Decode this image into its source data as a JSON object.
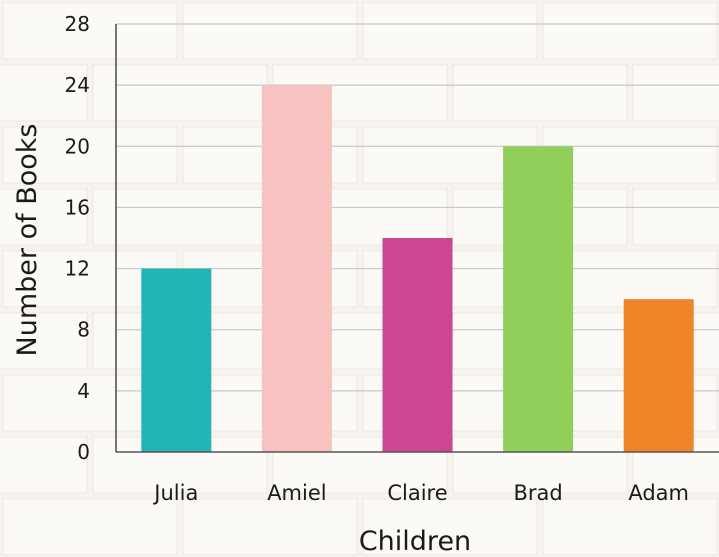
{
  "chart_data": {
    "type": "bar",
    "title": "",
    "xlabel": "Children",
    "ylabel": "Number of Books",
    "categories": [
      "Julia",
      "Amiel",
      "Claire",
      "Brad",
      "Adam"
    ],
    "values": [
      12,
      24,
      14,
      20,
      10
    ],
    "colors": [
      "#22b5b5",
      "#f7c2c0",
      "#cc4694",
      "#90d05a",
      "#ef8428"
    ],
    "ylim": [
      0,
      28
    ],
    "yticks": [
      "0",
      "4",
      "8",
      "12",
      "16",
      "20",
      "24",
      "28"
    ],
    "grid": true,
    "gridColor": "#c8c8c8",
    "axisColor": "#555555",
    "legend": "none"
  }
}
